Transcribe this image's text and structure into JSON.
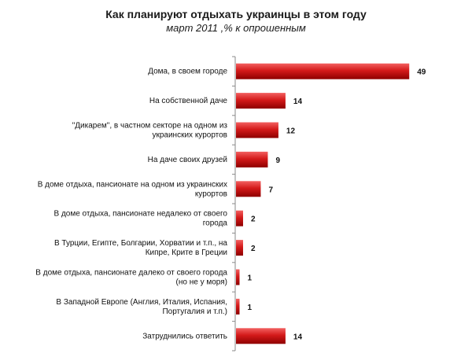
{
  "chart_data": {
    "type": "bar",
    "orientation": "horizontal",
    "title": "Как планируют отдыхать украинцы в этом году",
    "subtitle": "март 2011 ,% к опрошенным",
    "categories": [
      [
        "Дома, в своем городе"
      ],
      [
        "На собственной даче"
      ],
      [
        "\"Дикарем\", в частном секторе на одном из",
        "украинских курортов"
      ],
      [
        "На даче своих друзей"
      ],
      [
        "В доме отдыха, пансионате на одном из украинских",
        "курортов"
      ],
      [
        "В доме отдыха, пансионате недалеко от своего",
        "города"
      ],
      [
        "В Турции, Египте, Болгарии, Хорватии и т.п., на",
        "Кипре, Крите в Греции"
      ],
      [
        "В доме отдыха, пансионате далеко от своего города",
        "(но не у моря)"
      ],
      [
        "В Западной Европе (Англия, Италия, Испания,",
        "Португалия и т.п.)"
      ],
      [
        "Затруднились ответить"
      ]
    ],
    "values": [
      49,
      14,
      12,
      9,
      7,
      2,
      2,
      1,
      1,
      14
    ],
    "xlim": [
      0,
      50
    ],
    "grid": false,
    "legend": "none",
    "colors": {
      "bar_light": "#f26060",
      "bar": "#d41a1a",
      "bar_dark": "#8e0000",
      "axis": "#8a8a8a"
    }
  }
}
